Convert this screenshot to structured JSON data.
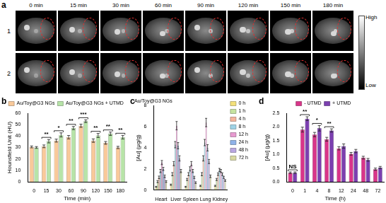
{
  "image_panel": {
    "label": "a",
    "column_labels": [
      "0 min",
      "15 min",
      "30 min",
      "60 min",
      "90 min",
      "120 min",
      "150 min",
      "180 min"
    ],
    "row_labels": [
      "1",
      "2"
    ],
    "colorbar": [
      "High",
      "Low"
    ]
  },
  "chart_data": [
    {
      "type": "bar",
      "panel": "b",
      "x_label": "Time (min)",
      "y_label": "Hounsfield Unit (HU)",
      "categories": [
        "0",
        "15",
        "30",
        "60",
        "90",
        "120",
        "150",
        "180"
      ],
      "series": [
        {
          "name": "Au/Toy@G3 NGs",
          "color": "#f9c99a",
          "values": [
            30.5,
            31,
            36,
            39,
            49,
            36,
            34,
            30
          ],
          "errors": [
            0.8,
            1.2,
            1.3,
            1.5,
            1.4,
            1.5,
            1.2,
            1.0
          ]
        },
        {
          "name": "Au/Toy@G3 NGs + UTMD",
          "color": "#b7e4a8",
          "values": [
            30,
            35.5,
            41,
            47,
            53,
            40.5,
            42,
            39
          ],
          "errors": [
            0.8,
            1.5,
            1.8,
            1.4,
            1.2,
            1.8,
            1.5,
            1.6
          ]
        }
      ],
      "annotations": [
        {
          "category": "15",
          "text": "**"
        },
        {
          "category": "30",
          "text": "*"
        },
        {
          "category": "60",
          "text": "**"
        },
        {
          "category": "90",
          "text": "***"
        },
        {
          "category": "120",
          "text": "**"
        },
        {
          "category": "150",
          "text": "**"
        },
        {
          "category": "180",
          "text": "**"
        }
      ],
      "ylim": [
        0,
        60
      ],
      "yticks": [
        0,
        10,
        20,
        30,
        40,
        50,
        60
      ],
      "grid": false,
      "legend": "top"
    },
    {
      "type": "bar",
      "panel": "c",
      "title": "Au/Toy@G3 NGs",
      "y_label": "[Au] (μg/g)",
      "categories": [
        "Heart",
        "Liver",
        "Spleen",
        "Lung",
        "Kidney"
      ],
      "series": [
        {
          "name": "0 h",
          "color": "#f3e07a",
          "values": [
            0.3,
            0.5,
            0.3,
            0.4,
            0.4
          ],
          "errors": [
            0.05,
            0.06,
            0.05,
            0.05,
            0.05
          ]
        },
        {
          "name": "1 h",
          "color": "#c6e3a0",
          "values": [
            0.8,
            1.5,
            1.0,
            1.5,
            1.0
          ],
          "errors": [
            0.1,
            0.15,
            0.1,
            0.15,
            0.1
          ]
        },
        {
          "name": "4 h",
          "color": "#f5b59c",
          "values": [
            1.2,
            2.5,
            1.5,
            3.0,
            1.5
          ],
          "errors": [
            0.12,
            0.2,
            0.15,
            0.25,
            0.12
          ]
        },
        {
          "name": "8 h",
          "color": "#9fd3e6",
          "values": [
            1.8,
            4.3,
            2.0,
            4.5,
            1.9
          ],
          "errors": [
            0.15,
            0.3,
            0.2,
            0.3,
            0.15
          ]
        },
        {
          "name": "12 h",
          "color": "#e79ad0",
          "values": [
            2.6,
            6.1,
            2.5,
            6.4,
            1.8
          ],
          "errors": [
            0.2,
            0.4,
            0.2,
            0.4,
            0.15
          ]
        },
        {
          "name": "24 h",
          "color": "#8fb2e8",
          "values": [
            2.0,
            4.2,
            1.8,
            4.0,
            1.5
          ],
          "errors": [
            0.15,
            0.3,
            0.15,
            0.3,
            0.12
          ]
        },
        {
          "name": "48 h",
          "color": "#b9a6e0",
          "values": [
            1.3,
            3.0,
            1.2,
            2.7,
            1.2
          ],
          "errors": [
            0.12,
            0.25,
            0.1,
            0.2,
            0.1
          ]
        },
        {
          "name": "72 h",
          "color": "#d8d8a0",
          "values": [
            0.8,
            1.8,
            0.7,
            1.3,
            0.9
          ],
          "errors": [
            0.08,
            0.15,
            0.08,
            0.12,
            0.08
          ]
        }
      ],
      "ylim": [
        0,
        8
      ],
      "yticks": [
        0,
        2,
        4,
        6,
        8
      ],
      "grid": false,
      "legend": "right"
    },
    {
      "type": "bar",
      "panel": "d",
      "x_label": "Time (h)",
      "y_label": "[Au] (μg/g)",
      "categories": [
        "0",
        "1",
        "4",
        "8",
        "12",
        "24",
        "48",
        "72"
      ],
      "series": [
        {
          "name": "- UTMD",
          "color": "#d9358a",
          "values": [
            0.33,
            1.9,
            1.72,
            1.55,
            1.22,
            1.02,
            0.88,
            0.46
          ],
          "errors": [
            0.03,
            0.09,
            0.08,
            0.07,
            0.06,
            0.05,
            0.05,
            0.04
          ]
        },
        {
          "name": "+ UTMD",
          "color": "#7b3fb0",
          "values": [
            0.33,
            2.3,
            1.95,
            1.87,
            1.3,
            1.12,
            0.8,
            0.52
          ],
          "errors": [
            0.03,
            0.07,
            0.1,
            0.06,
            0.08,
            0.06,
            0.05,
            0.04
          ]
        }
      ],
      "annotations": [
        {
          "category": "0",
          "text": "NS"
        },
        {
          "category": "1",
          "text": "**"
        },
        {
          "category": "4",
          "text": "*"
        },
        {
          "category": "8",
          "text": "**"
        }
      ],
      "ylim": [
        0,
        2.5
      ],
      "yticks": [
        {
          "value": 0,
          "label": "0.0"
        },
        {
          "value": 0.5,
          "label": "0.5"
        },
        {
          "value": 1,
          "label": "1.0"
        },
        {
          "value": 1.5,
          "label": "1.5"
        },
        {
          "value": 2,
          "label": "2.0"
        },
        {
          "value": 2.5,
          "label": "2.5"
        }
      ],
      "grid": false,
      "legend": "top"
    }
  ]
}
